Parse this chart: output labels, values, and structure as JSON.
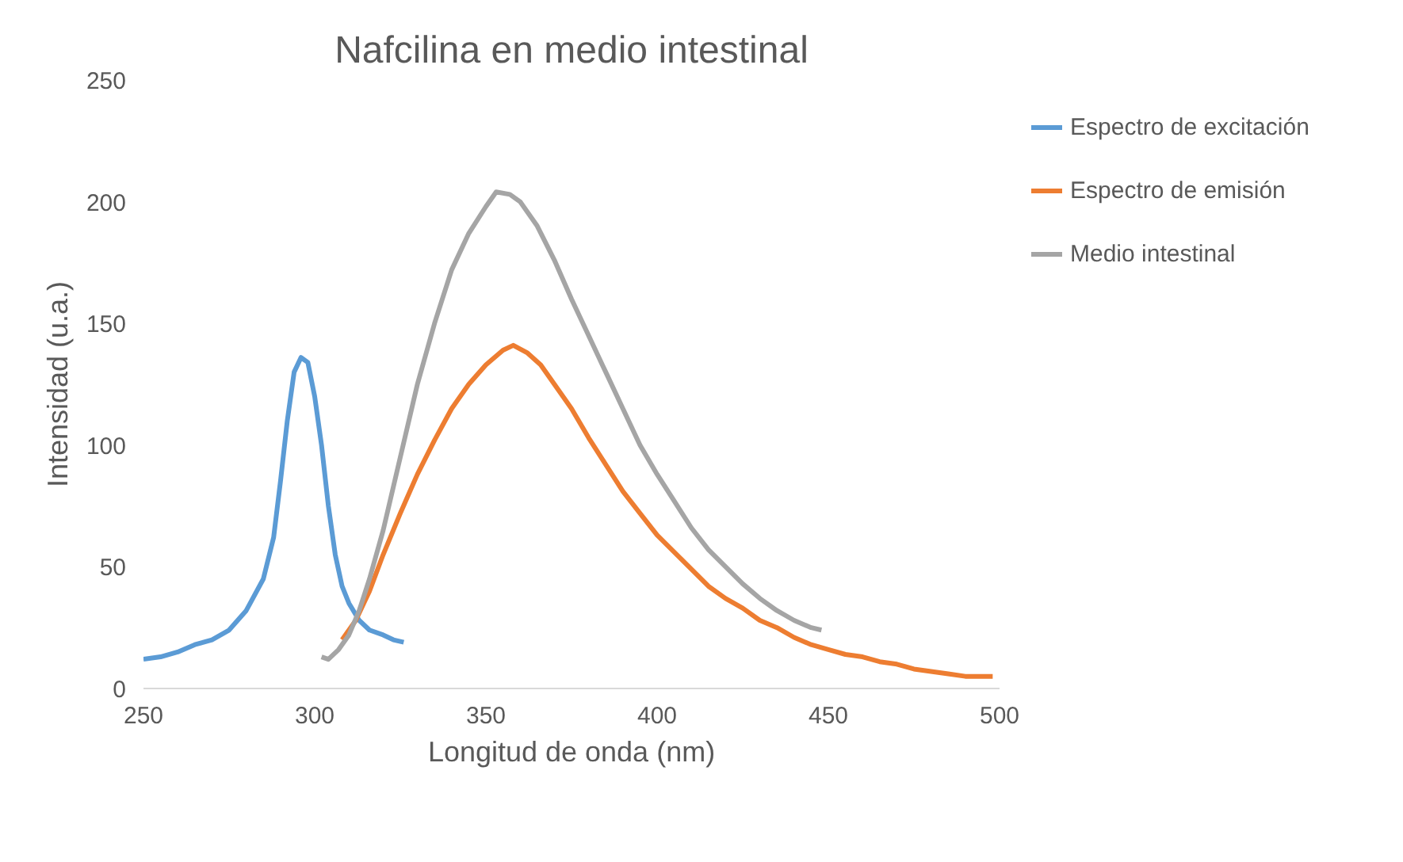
{
  "chart_data": {
    "type": "line",
    "title": "Nafcilina en medio intestinal",
    "xlabel": "Longitud de onda (nm)",
    "ylabel": "Intensidad (u.a.)",
    "xlim": [
      250,
      500
    ],
    "xticks": [
      250,
      300,
      350,
      400,
      450,
      500
    ],
    "ylim": [
      0,
      250
    ],
    "yticks": [
      0,
      50,
      100,
      150,
      200,
      250
    ],
    "grid": false,
    "legend": "right",
    "marker": "none",
    "line_style": "solid",
    "series": [
      {
        "name": "Espectro de excitación",
        "color": "#5b9bd5",
        "x": [
          250,
          255,
          260,
          265,
          270,
          275,
          280,
          285,
          288,
          290,
          292,
          294,
          296,
          298,
          300,
          302,
          304,
          306,
          308,
          310,
          313,
          316,
          320,
          323,
          326
        ],
        "values": [
          12,
          13,
          15,
          18,
          20,
          24,
          32,
          45,
          62,
          85,
          110,
          130,
          136,
          134,
          120,
          100,
          75,
          55,
          42,
          35,
          28,
          24,
          22,
          20,
          19
        ]
      },
      {
        "name": "Espectro de emisión",
        "color": "#ed7d31",
        "x": [
          308,
          312,
          316,
          320,
          325,
          330,
          335,
          340,
          345,
          350,
          355,
          358,
          362,
          366,
          370,
          375,
          380,
          385,
          390,
          395,
          400,
          405,
          410,
          415,
          420,
          425,
          430,
          435,
          440,
          445,
          450,
          455,
          460,
          465,
          470,
          475,
          480,
          485,
          490,
          498
        ],
        "values": [
          20,
          28,
          40,
          55,
          72,
          88,
          102,
          115,
          125,
          133,
          139,
          141,
          138,
          133,
          125,
          115,
          103,
          92,
          81,
          72,
          63,
          56,
          49,
          42,
          37,
          33,
          28,
          25,
          21,
          18,
          16,
          14,
          13,
          11,
          10,
          8,
          7,
          6,
          5,
          5
        ]
      },
      {
        "name": "Medio intestinal",
        "color": "#a5a5a5",
        "x": [
          302,
          304,
          307,
          310,
          313,
          316,
          320,
          325,
          330,
          335,
          340,
          345,
          350,
          353,
          357,
          360,
          365,
          370,
          375,
          380,
          385,
          390,
          395,
          400,
          405,
          410,
          415,
          420,
          425,
          430,
          435,
          440,
          445,
          448
        ],
        "values": [
          13,
          12,
          16,
          22,
          32,
          45,
          65,
          95,
          125,
          150,
          172,
          187,
          198,
          204,
          203,
          200,
          190,
          176,
          160,
          145,
          130,
          115,
          100,
          88,
          77,
          66,
          57,
          50,
          43,
          37,
          32,
          28,
          25,
          24
        ]
      }
    ]
  }
}
